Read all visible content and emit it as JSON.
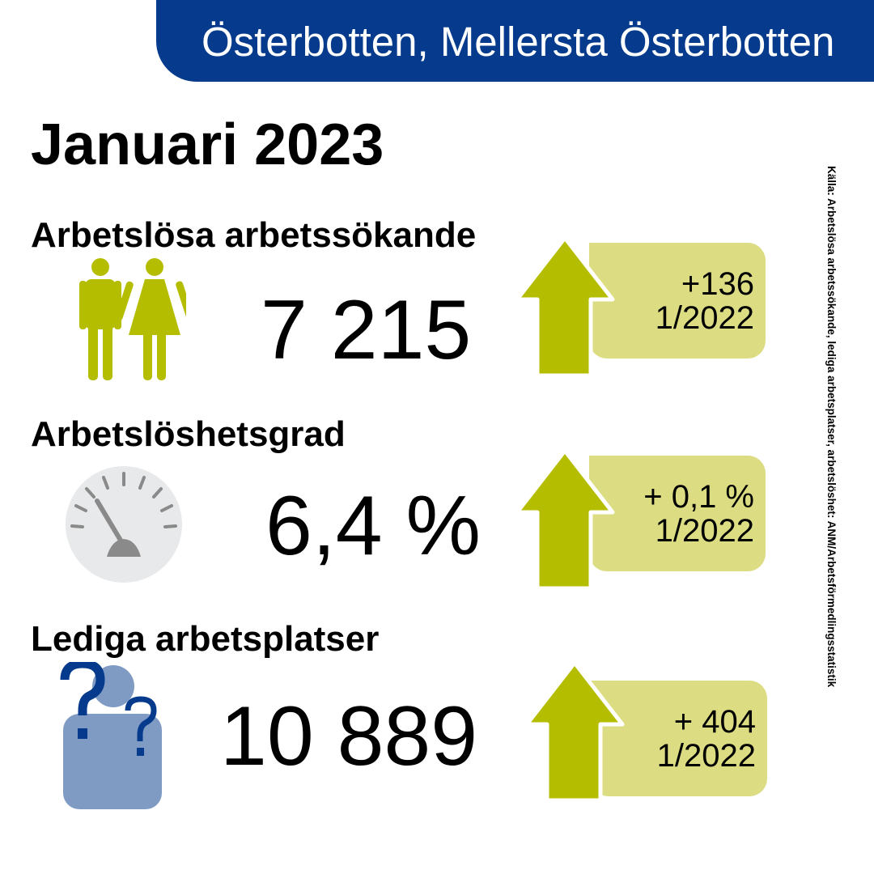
{
  "header": {
    "region": "Österbotten, Mellersta Österbotten"
  },
  "period": "Januari 2023",
  "stats": [
    {
      "heading": "Arbetslösa arbetssökande",
      "value": "7 215",
      "change": "+136",
      "compare": "1/2022",
      "icon": "man-woman-icon",
      "trend": "up"
    },
    {
      "heading": "Arbetslöshetsgrad",
      "value": "6,4 %",
      "change": "+ 0,1 %",
      "compare": "1/2022",
      "icon": "gauge-icon",
      "trend": "up"
    },
    {
      "heading": "Lediga arbetsplatser",
      "value": "10 889",
      "change": "+ 404",
      "compare": "1/2022",
      "icon": "person-question-icon",
      "trend": "up"
    }
  ],
  "source": "Källa: Arbetslösa arbetssökande, lediga arbetsplatser, arbetslöshet: ANM/Arbetsförmedlingsstatistik",
  "colors": {
    "banner": "#063a8c",
    "arrow": "#b5bd00",
    "box": "#dcdd82",
    "icon_green": "#b5bd00",
    "icon_blue": "#7f9bc4",
    "question": "#063a8c"
  }
}
